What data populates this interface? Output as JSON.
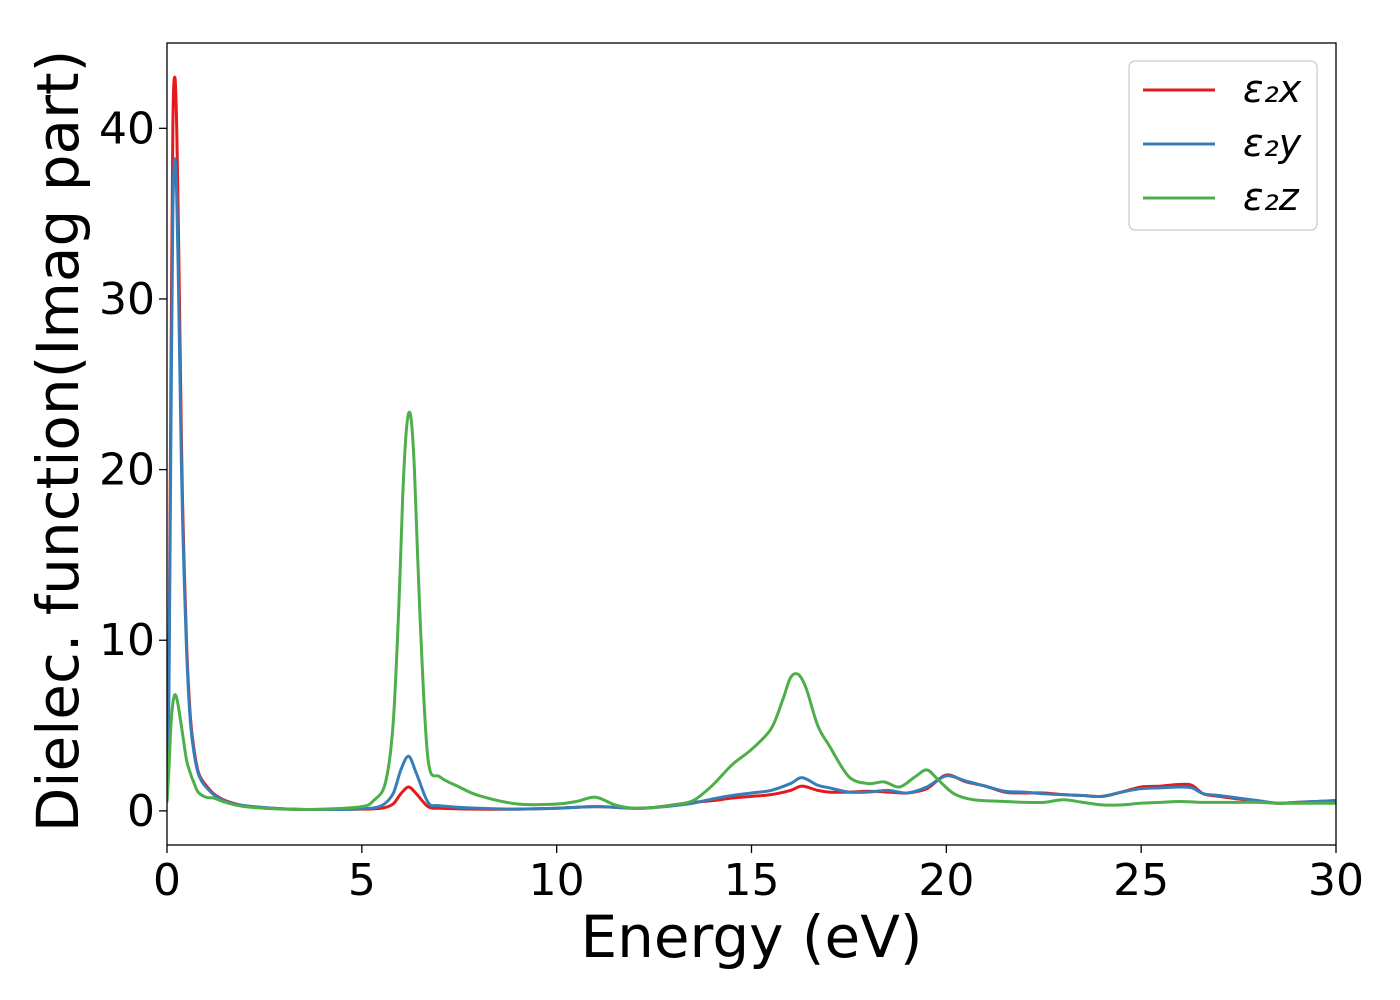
{
  "chart_data": {
    "type": "line",
    "title": "",
    "xlabel": "Energy (eV)",
    "ylabel": "Dielec. function(Imag part)",
    "xlim": [
      0,
      30
    ],
    "ylim": [
      -2,
      45
    ],
    "xticks": [
      0,
      5,
      10,
      15,
      20,
      25,
      30
    ],
    "xtick_labels": [
      "0",
      "5",
      "10",
      "15",
      "20",
      "25",
      "30"
    ],
    "yticks": [
      0,
      10,
      20,
      30,
      40
    ],
    "ytick_labels": [
      "0",
      "10",
      "20",
      "30",
      "40"
    ],
    "grid": false,
    "legend_position": "top-right",
    "series": [
      {
        "name": "ε₂x",
        "color": "#e41a1c",
        "x": [
          0,
          0.05,
          0.1,
          0.15,
          0.2,
          0.25,
          0.3,
          0.35,
          0.4,
          0.5,
          0.6,
          0.7,
          0.8,
          0.9,
          1.0,
          1.2,
          1.5,
          2.0,
          3.0,
          4.0,
          5.0,
          5.5,
          5.8,
          6.0,
          6.2,
          6.4,
          6.7,
          7.0,
          8.0,
          9.0,
          10.0,
          11.0,
          12.0,
          12.5,
          13.0,
          13.5,
          14.0,
          14.5,
          15.0,
          15.5,
          16.0,
          16.3,
          16.7,
          17.0,
          17.5,
          18.0,
          18.5,
          19.0,
          19.5,
          20.0,
          20.5,
          21.0,
          21.5,
          22.0,
          22.5,
          23.0,
          23.5,
          24.0,
          24.5,
          25.0,
          25.5,
          26.0,
          26.3,
          26.6,
          27.0,
          27.5,
          28.0,
          28.5,
          29.0,
          29.5,
          30.0
        ],
        "y": [
          0.5,
          8,
          25,
          40,
          43,
          40,
          33,
          25,
          18,
          10,
          5.5,
          3.5,
          2.3,
          1.8,
          1.5,
          1.0,
          0.6,
          0.3,
          0.12,
          0.08,
          0.1,
          0.15,
          0.4,
          1.0,
          1.4,
          1.0,
          0.25,
          0.15,
          0.1,
          0.1,
          0.15,
          0.25,
          0.15,
          0.2,
          0.35,
          0.5,
          0.6,
          0.75,
          0.85,
          0.95,
          1.2,
          1.45,
          1.2,
          1.1,
          1.1,
          1.15,
          1.1,
          1.05,
          1.3,
          2.1,
          1.7,
          1.45,
          1.1,
          1.05,
          1.05,
          0.95,
          0.9,
          0.85,
          1.1,
          1.4,
          1.45,
          1.55,
          1.5,
          1.0,
          0.85,
          0.7,
          0.55,
          0.45,
          0.5,
          0.55,
          0.6
        ]
      },
      {
        "name": "ε₂y",
        "color": "#377eb8",
        "x": [
          0,
          0.05,
          0.1,
          0.15,
          0.2,
          0.25,
          0.3,
          0.35,
          0.4,
          0.5,
          0.6,
          0.7,
          0.8,
          0.9,
          1.0,
          1.2,
          1.5,
          2.0,
          3.0,
          4.0,
          5.0,
          5.5,
          5.8,
          6.0,
          6.2,
          6.4,
          6.7,
          7.0,
          8.0,
          9.0,
          10.0,
          11.0,
          12.0,
          12.5,
          13.0,
          13.5,
          14.0,
          14.5,
          15.0,
          15.5,
          16.0,
          16.3,
          16.7,
          17.0,
          17.5,
          18.0,
          18.5,
          19.0,
          19.5,
          20.0,
          20.5,
          21.0,
          21.5,
          22.0,
          22.5,
          23.0,
          23.5,
          24.0,
          24.5,
          25.0,
          25.5,
          26.0,
          26.3,
          26.6,
          27.0,
          27.5,
          28.0,
          28.5,
          29.0,
          29.5,
          30.0
        ],
        "y": [
          0.5,
          7,
          22,
          35,
          38.2,
          36,
          30,
          23,
          17,
          9.5,
          5.2,
          3.3,
          2.2,
          1.7,
          1.4,
          0.95,
          0.55,
          0.3,
          0.12,
          0.08,
          0.12,
          0.3,
          1.0,
          2.4,
          3.2,
          2.2,
          0.5,
          0.3,
          0.15,
          0.1,
          0.15,
          0.25,
          0.15,
          0.2,
          0.3,
          0.45,
          0.7,
          0.9,
          1.05,
          1.2,
          1.6,
          1.95,
          1.5,
          1.35,
          1.1,
          1.1,
          1.2,
          1.05,
          1.4,
          2.05,
          1.75,
          1.45,
          1.15,
          1.1,
          1.0,
          0.95,
          0.9,
          0.85,
          1.1,
          1.3,
          1.35,
          1.4,
          1.35,
          1.0,
          0.9,
          0.75,
          0.6,
          0.45,
          0.5,
          0.55,
          0.6
        ]
      },
      {
        "name": "ε₂z",
        "color": "#4daf4a",
        "x": [
          0,
          0.05,
          0.1,
          0.15,
          0.2,
          0.25,
          0.3,
          0.4,
          0.5,
          0.6,
          0.7,
          0.8,
          1.0,
          1.2,
          1.5,
          2.0,
          3.0,
          4.0,
          5.0,
          5.3,
          5.6,
          5.8,
          5.95,
          6.05,
          6.15,
          6.25,
          6.35,
          6.5,
          6.7,
          7.0,
          7.5,
          8.0,
          9.0,
          10.0,
          10.5,
          11.0,
          11.5,
          12.0,
          12.5,
          13.0,
          13.5,
          14.0,
          14.5,
          15.0,
          15.5,
          15.8,
          16.0,
          16.2,
          16.4,
          16.7,
          17.0,
          17.5,
          18.0,
          18.4,
          18.8,
          19.2,
          19.5,
          19.8,
          20.2,
          20.7,
          21.5,
          22.0,
          22.5,
          23.0,
          23.5,
          24.0,
          24.5,
          25.0,
          25.5,
          26.0,
          26.5,
          27.0,
          27.5,
          28.0,
          28.5,
          29.0,
          29.5,
          30.0
        ],
        "y": [
          0.5,
          2.5,
          5.0,
          6.3,
          6.8,
          6.6,
          6.0,
          4.5,
          3.0,
          2.2,
          1.6,
          1.1,
          0.8,
          0.75,
          0.5,
          0.25,
          0.1,
          0.1,
          0.25,
          0.6,
          1.6,
          5.0,
          12.0,
          18.5,
          22.5,
          23.2,
          20.0,
          11.0,
          3.0,
          2.0,
          1.4,
          0.9,
          0.4,
          0.4,
          0.55,
          0.8,
          0.35,
          0.15,
          0.2,
          0.35,
          0.6,
          1.5,
          2.7,
          3.6,
          4.8,
          6.5,
          7.8,
          8.0,
          7.2,
          5.0,
          3.8,
          2.0,
          1.6,
          1.7,
          1.4,
          2.0,
          2.4,
          1.8,
          1.0,
          0.65,
          0.55,
          0.5,
          0.5,
          0.65,
          0.5,
          0.35,
          0.35,
          0.45,
          0.5,
          0.55,
          0.5,
          0.5,
          0.5,
          0.5,
          0.45,
          0.45,
          0.45,
          0.45
        ]
      }
    ]
  }
}
